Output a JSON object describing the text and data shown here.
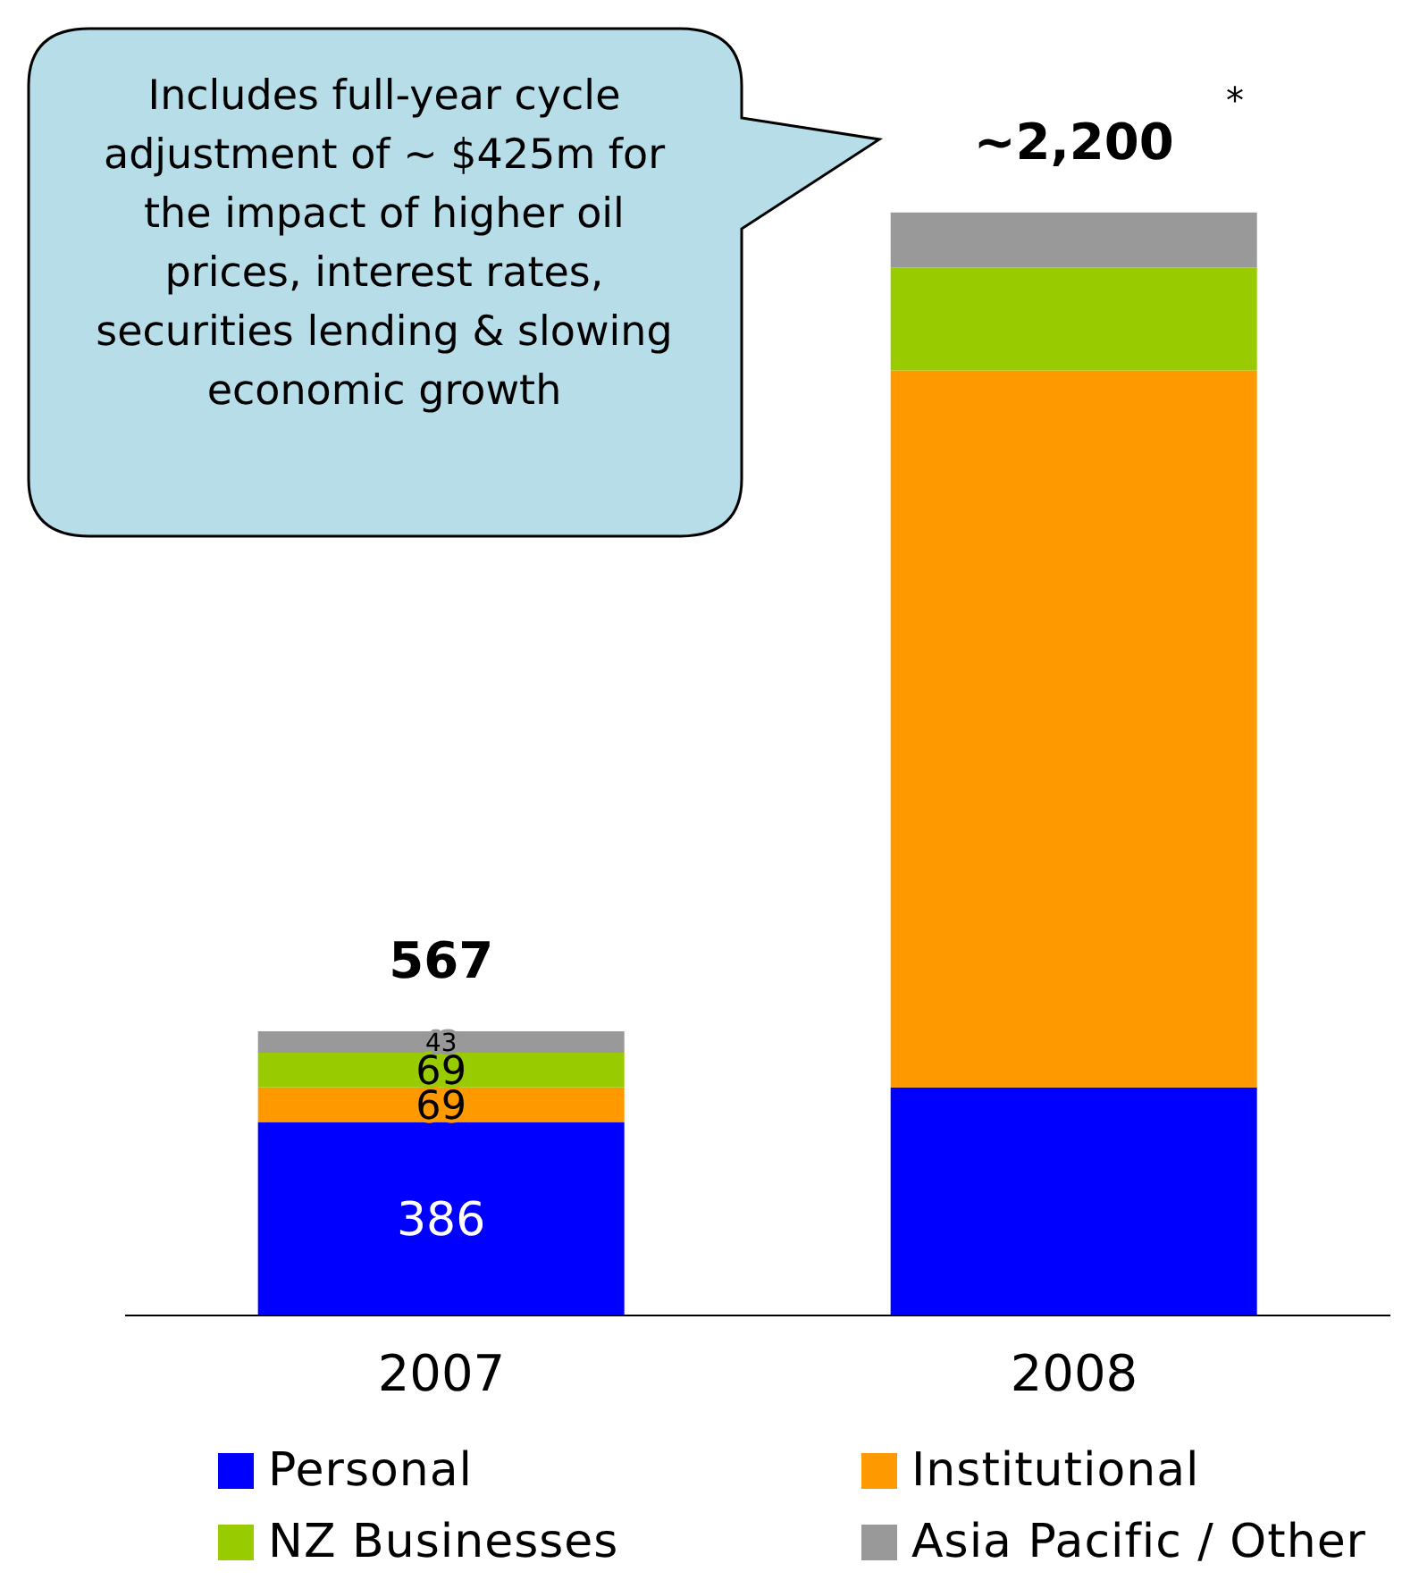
{
  "chart_data": {
    "type": "bar",
    "stacked": true,
    "categories": [
      "2007",
      "2008"
    ],
    "series": [
      {
        "name": "Personal",
        "color": "#0000ff",
        "values": [
          386,
          455
        ],
        "value_labels": [
          "386",
          null
        ]
      },
      {
        "name": "Institutional",
        "color": "#ff9900",
        "values": [
          69,
          1430
        ],
        "value_labels": [
          "69",
          null
        ]
      },
      {
        "name": "NZ Businesses",
        "color": "#99cc00",
        "values": [
          69,
          205
        ],
        "value_labels": [
          "69",
          null
        ]
      },
      {
        "name": "Asia Pacific / Other",
        "color": "#999999",
        "values": [
          43,
          110
        ],
        "value_labels": [
          "43",
          null
        ]
      }
    ],
    "totals": [
      "567",
      "~2,200"
    ],
    "legend": "bottom",
    "annotations": [
      "Includes full-year cycle adjustment of ~ $425m for the impact of higher oil prices, interest rates, securities lending & slowing economic growth",
      "*"
    ]
  }
}
